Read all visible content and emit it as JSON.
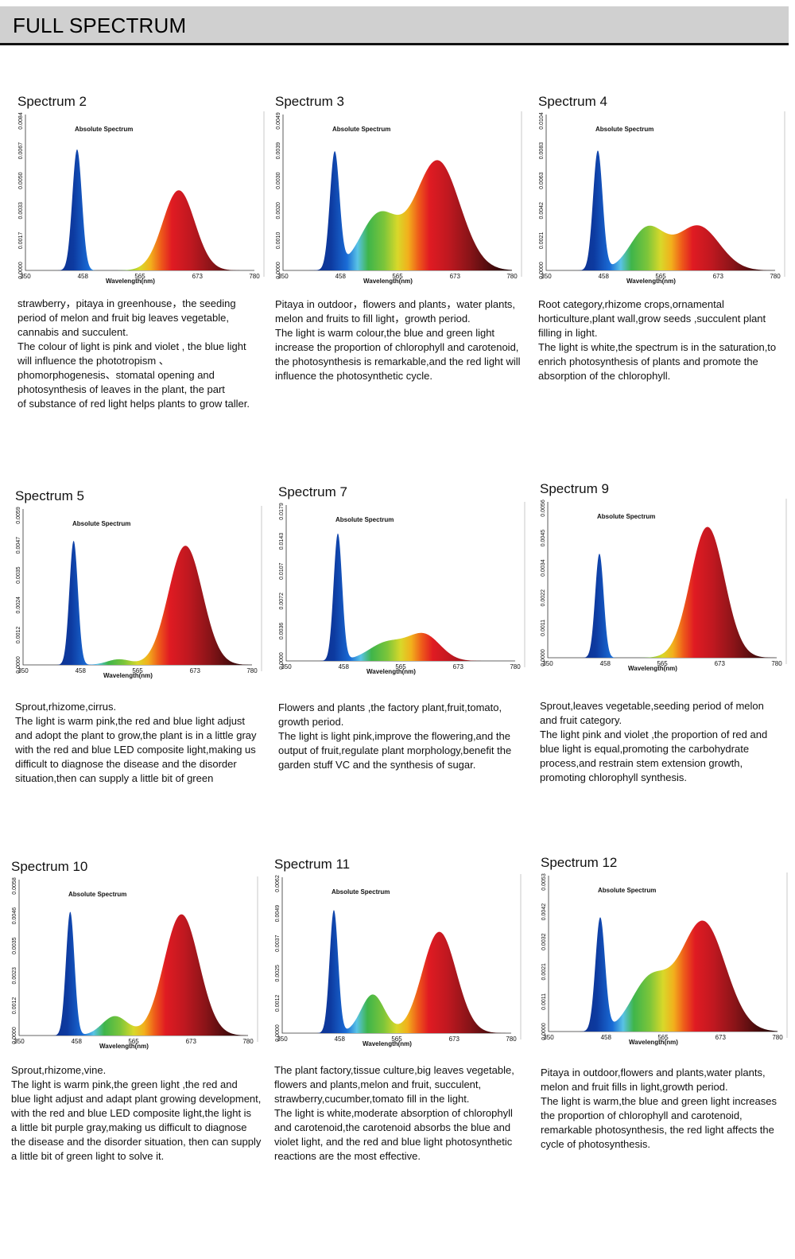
{
  "header": {
    "title": "FULL SPECTRUM"
  },
  "colors": {
    "header_bg": "#d0d0d0",
    "wavelength_stops": [
      {
        "nm": 350,
        "color": "#10206a"
      },
      {
        "nm": 440,
        "color": "#0d3aa0"
      },
      {
        "nm": 470,
        "color": "#1a6cd6"
      },
      {
        "nm": 490,
        "color": "#59c3e6"
      },
      {
        "nm": 510,
        "color": "#3fb54a"
      },
      {
        "nm": 540,
        "color": "#7cc53a"
      },
      {
        "nm": 565,
        "color": "#d8d82a"
      },
      {
        "nm": 585,
        "color": "#f2b01c"
      },
      {
        "nm": 605,
        "color": "#ee5a1a"
      },
      {
        "nm": 625,
        "color": "#e01b22"
      },
      {
        "nm": 660,
        "color": "#c01820"
      },
      {
        "nm": 700,
        "color": "#8a1418"
      },
      {
        "nm": 740,
        "color": "#4a0c0d"
      },
      {
        "nm": 780,
        "color": "#1a0304"
      }
    ]
  },
  "chart_data": [
    {
      "type": "area",
      "id": "s2",
      "title": "Spectrum 2",
      "chart_title": "Absolute Spectrum",
      "xlabel": "Wavelength(nm)",
      "xlim": [
        350,
        780
      ],
      "x_ticks": [
        350,
        458,
        565,
        673,
        780
      ],
      "y_ticks": [
        "0.0000",
        "0.0017",
        "0.0033",
        "0.0050",
        "0.0067",
        "0.0084"
      ],
      "ylim": [
        0,
        0.0084
      ],
      "peaks": [
        {
          "center": 447,
          "amp": 0.0068,
          "sigma": 9
        },
        {
          "center": 638,
          "amp": 0.0045,
          "sigma": 30
        }
      ],
      "description": [
        "strawberry，pitaya in greenhouse，the seeding",
        "period of  melon and  fruit big leaves vegetable,",
        "cannabis and succulent.",
        "The colour of light is pink and violet , the blue light",
        "will influence the phototropism 、",
        "phomorphogenesis、stomatal opening and",
        "photosynthesis of leaves in the plant, the part",
        "of substance of red light helps plants to grow taller."
      ]
    },
    {
      "type": "area",
      "id": "s3",
      "title": "Spectrum 3",
      "chart_title": "Absolute Spectrum",
      "xlabel": "Wavelength(nm)",
      "xlim": [
        350,
        780
      ],
      "x_ticks": [
        350,
        458,
        565,
        673,
        780
      ],
      "y_ticks": [
        "0.0000",
        "0.0010",
        "0.0020",
        "0.0030",
        "0.0039",
        "0.0049"
      ],
      "ylim": [
        0,
        0.0049
      ],
      "peaks": [
        {
          "center": 447,
          "amp": 0.0038,
          "sigma": 9
        },
        {
          "center": 530,
          "amp": 0.0018,
          "sigma": 35
        },
        {
          "center": 640,
          "amp": 0.0036,
          "sigma": 42
        }
      ],
      "description": [
        "Pitaya in outdoor，flowers and plants，water plants,",
        "melon and fruits to fill light，growth period.",
        "The light is warm colour,the blue and green light",
        "increase the proportion of chlorophyll and carotenoid,",
        "the photosynthesis is remarkable,and the red light will",
        "influence the photosynthetic cycle."
      ]
    },
    {
      "type": "area",
      "id": "s4",
      "title": "Spectrum 4",
      "chart_title": "Absolute Spectrum",
      "xlabel": "Wavelength(nm)",
      "xlim": [
        350,
        780
      ],
      "x_ticks": [
        350,
        458,
        565,
        673,
        780
      ],
      "y_ticks": [
        "0.0000",
        "0.0021",
        "0.0042",
        "0.0063",
        "0.0083",
        "0.0104"
      ],
      "ylim": [
        0,
        0.0104
      ],
      "peaks": [
        {
          "center": 447,
          "amp": 0.0083,
          "sigma": 9
        },
        {
          "center": 540,
          "amp": 0.0029,
          "sigma": 32
        },
        {
          "center": 635,
          "amp": 0.0031,
          "sigma": 40
        }
      ],
      "description": [
        "Root category,rhizome crops,ornamental",
        "horticulture,plant wall,grow seeds ,succulent plant",
        "filling in light.",
        "The light is white,the spectrum is in the saturation,to",
        "enrich photosynthesis of plants and promote the",
        "absorption of the chlorophyll."
      ]
    },
    {
      "type": "area",
      "id": "s5",
      "title": "Spectrum 5",
      "chart_title": "Absolute Spectrum",
      "xlabel": "Wavelength(nm)",
      "xlim": [
        350,
        780
      ],
      "x_ticks": [
        350,
        458,
        565,
        673,
        780
      ],
      "y_ticks": [
        "0.0000",
        "0.0012",
        "0.0024",
        "0.0035",
        "0.0047",
        "0.0059"
      ],
      "ylim": [
        0,
        0.0059
      ],
      "peaks": [
        {
          "center": 445,
          "amp": 0.0049,
          "sigma": 8
        },
        {
          "center": 530,
          "amp": 0.00022,
          "sigma": 22
        },
        {
          "center": 655,
          "amp": 0.0047,
          "sigma": 32
        }
      ],
      "description": [
        "Sprout,rhizome,cirrus.",
        "The light is warm pink,the red and blue light adjust",
        "and adopt the plant to grow,the plant is in a little gray",
        "with the red and blue LED composite light,making us",
        "difficult to diagnose the disease and the disorder",
        "situation,then can supply a little bit of green"
      ]
    },
    {
      "type": "area",
      "id": "s7",
      "title": "Spectrum 7",
      "chart_title": "Absolute Spectrum",
      "xlabel": "Wavelength(nm)",
      "xlim": [
        350,
        780
      ],
      "x_ticks": [
        350,
        458,
        565,
        673,
        780
      ],
      "y_ticks": [
        "0.0000",
        "0.0036",
        "0.0072",
        "0.0107",
        "0.0143",
        "0.0179"
      ],
      "ylim": [
        0,
        0.0179
      ],
      "peaks": [
        {
          "center": 447,
          "amp": 0.0152,
          "sigma": 8
        },
        {
          "center": 540,
          "amp": 0.0022,
          "sigma": 35
        },
        {
          "center": 610,
          "amp": 0.003,
          "sigma": 30
        }
      ],
      "description": [
        "Flowers and plants ,the factory plant,fruit,tomato,",
        "growth period.",
        "The light is light pink,improve the flowering,and the",
        "output of fruit,regulate plant morphology,benefit the",
        "garden stuff VC and the synthesis of sugar."
      ]
    },
    {
      "type": "area",
      "id": "s9",
      "title": "Spectrum 9",
      "chart_title": "Absolute Spectrum",
      "xlabel": "Wavelength(nm)",
      "xlim": [
        350,
        780
      ],
      "x_ticks": [
        350,
        458,
        565,
        673,
        780
      ],
      "y_ticks": [
        "0.0000",
        "0.0011",
        "0.0022",
        "0.0034",
        "0.0045",
        "0.0056"
      ],
      "ylim": [
        0,
        0.0056
      ],
      "peaks": [
        {
          "center": 447,
          "amp": 0.0039,
          "sigma": 8
        },
        {
          "center": 650,
          "amp": 0.0049,
          "sigma": 32
        }
      ],
      "description": [
        "Sprout,leaves vegetable,seeding period of melon",
        "and fruit category.",
        "The light pink and violet ,the proportion of red and",
        "blue light is equal,promoting the carbohydrate",
        "process,and restrain stem extension growth,",
        "promoting chlorophyll synthesis."
      ]
    },
    {
      "type": "area",
      "id": "s10",
      "title": "Spectrum 10",
      "chart_title": "Absolute Spectrum",
      "xlabel": "Wavelength(nm)",
      "xlim": [
        350,
        780
      ],
      "x_ticks": [
        350,
        458,
        565,
        673,
        780
      ],
      "y_ticks": [
        "0.0000",
        "0.0012",
        "0.0023",
        "0.0035",
        "0.0046",
        "0.0058"
      ],
      "ylim": [
        0,
        0.0058
      ],
      "peaks": [
        {
          "center": 446,
          "amp": 0.0048,
          "sigma": 8
        },
        {
          "center": 530,
          "amp": 0.00075,
          "sigma": 24
        },
        {
          "center": 655,
          "amp": 0.0047,
          "sigma": 33
        }
      ],
      "description": [
        "Sprout,rhizome,vine.",
        "The light is warm pink,the green light ,the red and",
        "blue light adjust and adapt plant growing development,",
        "with the red and blue LED composite light,the light is",
        "a little bit purple gray,making us difficult to diagnose",
        "the disease and the disorder situation, then can supply",
        "a little bit of green light to solve it."
      ]
    },
    {
      "type": "area",
      "id": "s11",
      "title": "Spectrum 11",
      "chart_title": "Absolute Spectrum",
      "xlabel": "Wavelength(nm)",
      "xlim": [
        350,
        780
      ],
      "x_ticks": [
        350,
        458,
        565,
        673,
        780
      ],
      "y_ticks": [
        "0.0000",
        "0.0012",
        "0.0025",
        "0.0037",
        "0.0049",
        "0.0062"
      ],
      "ylim": [
        0,
        0.0062
      ],
      "peaks": [
        {
          "center": 447,
          "amp": 0.0051,
          "sigma": 8
        },
        {
          "center": 520,
          "amp": 0.0016,
          "sigma": 22
        },
        {
          "center": 645,
          "amp": 0.0042,
          "sigma": 32
        }
      ],
      "description": [
        "The plant factory,tissue culture,big leaves vegetable,",
        "flowers and plants,melon and fruit, succulent,",
        "strawberry,cucumber,tomato fill in the light.",
        "The light is white,moderate absorption of chlorophyll",
        "and carotenoid,the carotenoid absorbs the blue and",
        "violet light, and the red and blue light photosynthetic",
        "reactions are the most effective."
      ]
    },
    {
      "type": "area",
      "id": "s12",
      "title": "Spectrum 12",
      "chart_title": "Absolute Spectrum",
      "xlabel": "Wavelength(nm)",
      "xlim": [
        350,
        780
      ],
      "x_ticks": [
        350,
        458,
        565,
        673,
        780
      ],
      "y_ticks": [
        "0.0000",
        "0.0011",
        "0.0021",
        "0.0032",
        "0.0042",
        "0.0053"
      ],
      "ylim": [
        0,
        0.0053
      ],
      "peaks": [
        {
          "center": 447,
          "amp": 0.004,
          "sigma": 9
        },
        {
          "center": 540,
          "amp": 0.0018,
          "sigma": 35
        },
        {
          "center": 640,
          "amp": 0.0039,
          "sigma": 42
        }
      ],
      "description": [
        "Pitaya in outdoor,flowers and plants,water plants,",
        "melon and fruit fills in light,growth period.",
        "The light is warm,the blue and green light increases",
        "the proportion of chlorophyll and carotenoid,",
        "remarkable photosynthesis, the red light affects the",
        "cycle of photosynthesis."
      ]
    }
  ]
}
